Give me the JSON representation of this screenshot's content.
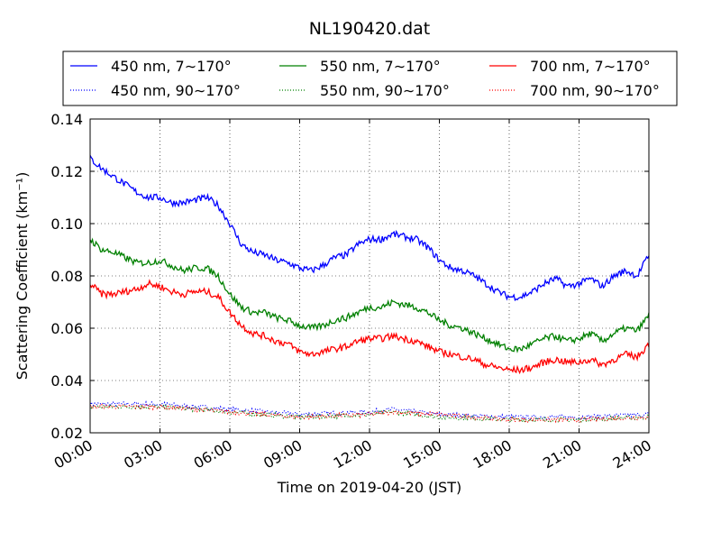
{
  "chart_data": {
    "type": "line",
    "title": "NL190420.dat",
    "xlabel": "Time on 2019-04-20 (JST)",
    "ylabel": "Scattering Coefficient (km⁻¹)",
    "x_ticks": [
      "00:00",
      "03:00",
      "06:00",
      "09:00",
      "12:00",
      "15:00",
      "18:00",
      "21:00",
      "24:00"
    ],
    "x_tick_hours": [
      0,
      3,
      6,
      9,
      12,
      15,
      18,
      21,
      24
    ],
    "xlim_hours": [
      0,
      24
    ],
    "ylim": [
      0.02,
      0.14
    ],
    "y_ticks": [
      0.02,
      0.04,
      0.06,
      0.08,
      0.1,
      0.12,
      0.14
    ],
    "y_tick_labels": [
      "0.02",
      "0.04",
      "0.06",
      "0.08",
      "0.10",
      "0.12",
      "0.14"
    ],
    "grid": true,
    "legend_position": "top (above plot, 3 columns)",
    "series": [
      {
        "name": "450 nm, 7∼170°",
        "color": "#0000ff",
        "style": "solid",
        "x": [
          0.0,
          0.5,
          1.0,
          1.5,
          2.0,
          2.5,
          3.0,
          3.5,
          4.0,
          4.5,
          5.0,
          5.5,
          6.0,
          6.5,
          7.0,
          7.5,
          8.0,
          8.5,
          9.0,
          9.5,
          10.0,
          10.5,
          11.0,
          11.5,
          12.0,
          12.5,
          13.0,
          13.5,
          14.0,
          14.5,
          15.0,
          15.5,
          16.0,
          16.5,
          17.0,
          17.5,
          18.0,
          18.5,
          19.0,
          19.5,
          20.0,
          20.5,
          21.0,
          21.5,
          22.0,
          22.5,
          23.0,
          23.5,
          24.0
        ],
        "y": [
          0.125,
          0.121,
          0.118,
          0.115,
          0.112,
          0.11,
          0.11,
          0.108,
          0.108,
          0.109,
          0.11,
          0.107,
          0.1,
          0.092,
          0.089,
          0.088,
          0.086,
          0.085,
          0.083,
          0.082,
          0.084,
          0.087,
          0.088,
          0.092,
          0.094,
          0.094,
          0.096,
          0.095,
          0.094,
          0.091,
          0.086,
          0.083,
          0.082,
          0.08,
          0.077,
          0.074,
          0.072,
          0.072,
          0.074,
          0.077,
          0.079,
          0.076,
          0.077,
          0.079,
          0.076,
          0.08,
          0.082,
          0.08,
          0.088
        ]
      },
      {
        "name": "550 nm, 7∼170°",
        "color": "#008000",
        "style": "solid",
        "x": [
          0.0,
          0.5,
          1.0,
          1.5,
          2.0,
          2.5,
          3.0,
          3.5,
          4.0,
          4.5,
          5.0,
          5.5,
          6.0,
          6.5,
          7.0,
          7.5,
          8.0,
          8.5,
          9.0,
          9.5,
          10.0,
          10.5,
          11.0,
          11.5,
          12.0,
          12.5,
          13.0,
          13.5,
          14.0,
          14.5,
          15.0,
          15.5,
          16.0,
          16.5,
          17.0,
          17.5,
          18.0,
          18.5,
          19.0,
          19.5,
          20.0,
          20.5,
          21.0,
          21.5,
          22.0,
          22.5,
          23.0,
          23.5,
          24.0
        ],
        "y": [
          0.094,
          0.09,
          0.089,
          0.087,
          0.085,
          0.085,
          0.086,
          0.084,
          0.082,
          0.083,
          0.083,
          0.08,
          0.073,
          0.068,
          0.066,
          0.066,
          0.064,
          0.063,
          0.061,
          0.06,
          0.061,
          0.063,
          0.064,
          0.066,
          0.068,
          0.068,
          0.07,
          0.069,
          0.068,
          0.066,
          0.063,
          0.061,
          0.06,
          0.058,
          0.056,
          0.054,
          0.052,
          0.052,
          0.054,
          0.056,
          0.057,
          0.055,
          0.056,
          0.058,
          0.055,
          0.058,
          0.06,
          0.059,
          0.065
        ]
      },
      {
        "name": "700 nm, 7∼170°",
        "color": "#ff0000",
        "style": "solid",
        "x": [
          0.0,
          0.5,
          1.0,
          1.5,
          2.0,
          2.5,
          3.0,
          3.5,
          4.0,
          4.5,
          5.0,
          5.5,
          6.0,
          6.5,
          7.0,
          7.5,
          8.0,
          8.5,
          9.0,
          9.5,
          10.0,
          10.5,
          11.0,
          11.5,
          12.0,
          12.5,
          13.0,
          13.5,
          14.0,
          14.5,
          15.0,
          15.5,
          16.0,
          16.5,
          17.0,
          17.5,
          18.0,
          18.5,
          19.0,
          19.5,
          20.0,
          20.5,
          21.0,
          21.5,
          22.0,
          22.5,
          23.0,
          23.5,
          24.0
        ],
        "y": [
          0.077,
          0.073,
          0.073,
          0.074,
          0.075,
          0.077,
          0.076,
          0.074,
          0.073,
          0.074,
          0.074,
          0.072,
          0.066,
          0.061,
          0.058,
          0.057,
          0.055,
          0.054,
          0.051,
          0.05,
          0.051,
          0.052,
          0.053,
          0.055,
          0.056,
          0.056,
          0.057,
          0.056,
          0.055,
          0.053,
          0.051,
          0.05,
          0.049,
          0.048,
          0.046,
          0.045,
          0.044,
          0.044,
          0.045,
          0.047,
          0.048,
          0.047,
          0.047,
          0.048,
          0.046,
          0.048,
          0.05,
          0.049,
          0.054
        ]
      },
      {
        "name": "450 nm, 90∼170°",
        "color": "#0000ff",
        "style": "dotted",
        "x": [
          0,
          3,
          6,
          9,
          12,
          13,
          15,
          18,
          21,
          24
        ],
        "y": [
          0.031,
          0.031,
          0.029,
          0.027,
          0.028,
          0.029,
          0.027,
          0.026,
          0.026,
          0.027
        ]
      },
      {
        "name": "550 nm, 90∼170°",
        "color": "#008000",
        "style": "dotted",
        "x": [
          0,
          3,
          6,
          9,
          12,
          13,
          15,
          18,
          21,
          24
        ],
        "y": [
          0.03,
          0.03,
          0.028,
          0.026,
          0.027,
          0.028,
          0.026,
          0.025,
          0.025,
          0.026
        ]
      },
      {
        "name": "700 nm, 90∼170°",
        "color": "#ff0000",
        "style": "dotted",
        "x": [
          0,
          3,
          6,
          9,
          12,
          13,
          15,
          18,
          21,
          24
        ],
        "y": [
          0.03,
          0.03,
          0.028,
          0.026,
          0.027,
          0.028,
          0.027,
          0.025,
          0.025,
          0.026
        ]
      }
    ],
    "legend_order": [
      0,
      3,
      1,
      4,
      2,
      5
    ]
  }
}
